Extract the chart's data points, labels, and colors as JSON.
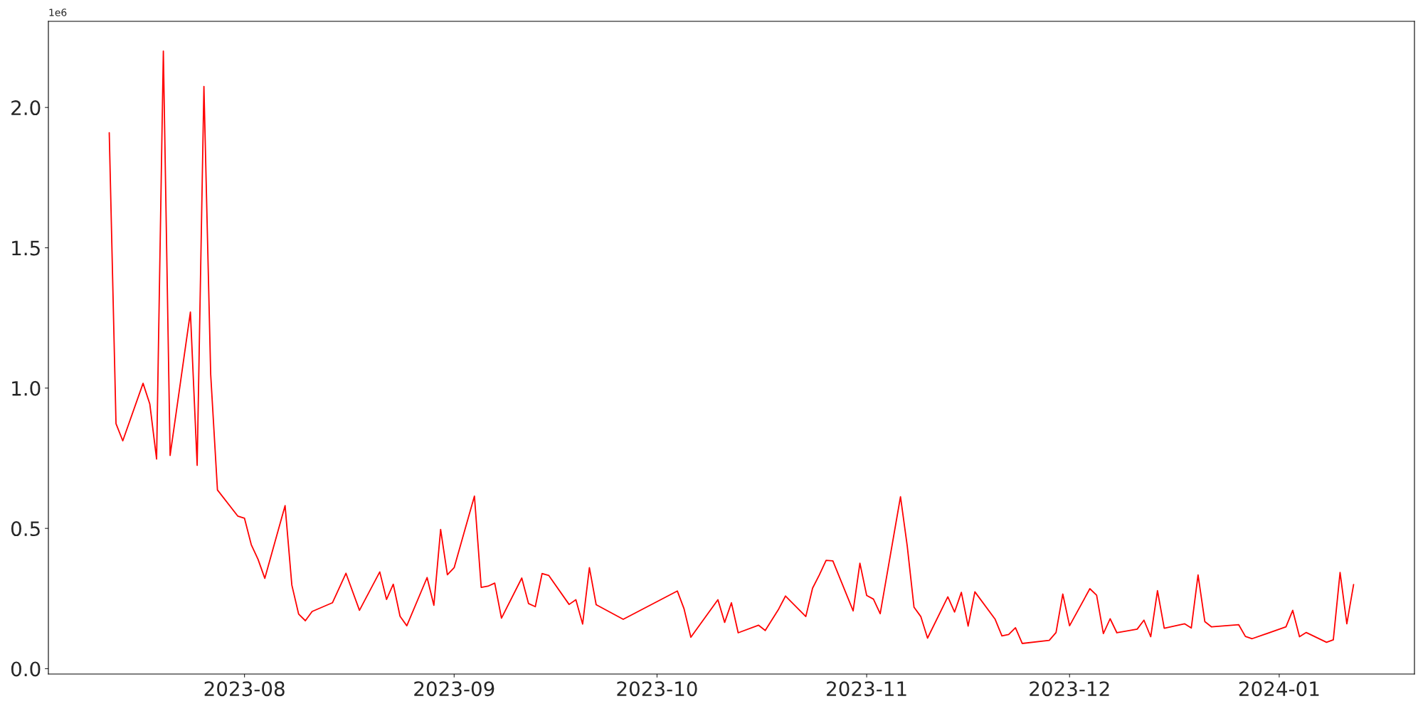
{
  "chart_data": {
    "type": "line",
    "x": [
      "2023-07-12",
      "2023-07-13",
      "2023-07-14",
      "2023-07-17",
      "2023-07-18",
      "2023-07-19",
      "2023-07-20",
      "2023-07-21",
      "2023-07-24",
      "2023-07-25",
      "2023-07-26",
      "2023-07-27",
      "2023-07-28",
      "2023-07-31",
      "2023-08-01",
      "2023-08-02",
      "2023-08-03",
      "2023-08-04",
      "2023-08-07",
      "2023-08-08",
      "2023-08-09",
      "2023-08-10",
      "2023-08-11",
      "2023-08-14",
      "2023-08-16",
      "2023-08-18",
      "2023-08-21",
      "2023-08-22",
      "2023-08-23",
      "2023-08-24",
      "2023-08-25",
      "2023-08-28",
      "2023-08-29",
      "2023-08-30",
      "2023-08-31",
      "2023-09-01",
      "2023-09-04",
      "2023-09-05",
      "2023-09-06",
      "2023-09-07",
      "2023-09-08",
      "2023-09-11",
      "2023-09-12",
      "2023-09-13",
      "2023-09-14",
      "2023-09-15",
      "2023-09-18",
      "2023-09-19",
      "2023-09-20",
      "2023-09-21",
      "2023-09-22",
      "2023-09-26",
      "2023-10-04",
      "2023-10-05",
      "2023-10-06",
      "2023-10-10",
      "2023-10-11",
      "2023-10-12",
      "2023-10-13",
      "2023-10-16",
      "2023-10-17",
      "2023-10-19",
      "2023-10-20",
      "2023-10-23",
      "2023-10-24",
      "2023-10-25",
      "2023-10-26",
      "2023-10-27",
      "2023-10-30",
      "2023-10-31",
      "2023-11-01",
      "2023-11-02",
      "2023-11-03",
      "2023-11-06",
      "2023-11-07",
      "2023-11-08",
      "2023-11-09",
      "2023-11-10",
      "2023-11-13",
      "2023-11-14",
      "2023-11-15",
      "2023-11-16",
      "2023-11-17",
      "2023-11-20",
      "2023-11-21",
      "2023-11-22",
      "2023-11-23",
      "2023-11-24",
      "2023-11-28",
      "2023-11-29",
      "2023-11-30",
      "2023-12-01",
      "2023-12-04",
      "2023-12-05",
      "2023-12-06",
      "2023-12-07",
      "2023-12-08",
      "2023-12-11",
      "2023-12-12",
      "2023-12-13",
      "2023-12-14",
      "2023-12-15",
      "2023-12-18",
      "2023-12-19",
      "2023-12-20",
      "2023-12-21",
      "2023-12-22",
      "2023-12-26",
      "2023-12-27",
      "2023-12-28",
      "2024-01-02",
      "2024-01-03",
      "2024-01-04",
      "2024-01-05",
      "2024-01-08",
      "2024-01-09",
      "2024-01-10",
      "2024-01-11",
      "2024-01-12"
    ],
    "series": [
      {
        "color": "#ff0000",
        "values": [
          1.91,
          0.873,
          0.812,
          1.017,
          0.943,
          0.747,
          2.201,
          0.76,
          1.271,
          0.725,
          2.075,
          1.049,
          0.637,
          0.544,
          0.536,
          0.442,
          0.39,
          0.322,
          0.581,
          0.298,
          0.195,
          0.171,
          0.204,
          0.235,
          0.34,
          0.208,
          0.345,
          0.247,
          0.301,
          0.187,
          0.153,
          0.325,
          0.226,
          0.496,
          0.335,
          0.36,
          0.615,
          0.29,
          0.294,
          0.305,
          0.18,
          0.323,
          0.232,
          0.221,
          0.339,
          0.332,
          0.229,
          0.246,
          0.159,
          0.36,
          0.228,
          0.176,
          0.277,
          0.213,
          0.112,
          0.246,
          0.165,
          0.235,
          0.128,
          0.155,
          0.136,
          0.213,
          0.259,
          0.186,
          0.287,
          0.334,
          0.386,
          0.384,
          0.206,
          0.376,
          0.261,
          0.248,
          0.196,
          0.613,
          0.437,
          0.219,
          0.186,
          0.109,
          0.256,
          0.202,
          0.272,
          0.152,
          0.274,
          0.176,
          0.117,
          0.122,
          0.146,
          0.09,
          0.101,
          0.129,
          0.266,
          0.153,
          0.285,
          0.262,
          0.125,
          0.178,
          0.128,
          0.141,
          0.173,
          0.114,
          0.278,
          0.144,
          0.16,
          0.145,
          0.334,
          0.168,
          0.149,
          0.157,
          0.115,
          0.107,
          0.149,
          0.208,
          0.114,
          0.129,
          0.094,
          0.103,
          0.343,
          0.16,
          0.3
        ]
      }
    ],
    "xlim": [
      "2023-07-03",
      "2024-01-21"
    ],
    "xticks": [
      {
        "value": "2023-08-01",
        "label": "2023-08"
      },
      {
        "value": "2023-09-01",
        "label": "2023-09"
      },
      {
        "value": "2023-10-01",
        "label": "2023-10"
      },
      {
        "value": "2023-11-01",
        "label": "2023-11"
      },
      {
        "value": "2023-12-01",
        "label": "2023-12"
      },
      {
        "value": "2024-01-01",
        "label": "2024-01"
      }
    ],
    "ylim": [
      -0.019,
      2.307
    ],
    "yticks": [
      {
        "value": 0,
        "label": "0.0"
      },
      0.5,
      {
        "value": 1,
        "label": "1.0"
      },
      1.5,
      {
        "value": 2,
        "label": "2.0"
      }
    ],
    "annotations": [
      "1e6"
    ],
    "grid": false,
    "marker": "none",
    "line_style": "solid"
  }
}
